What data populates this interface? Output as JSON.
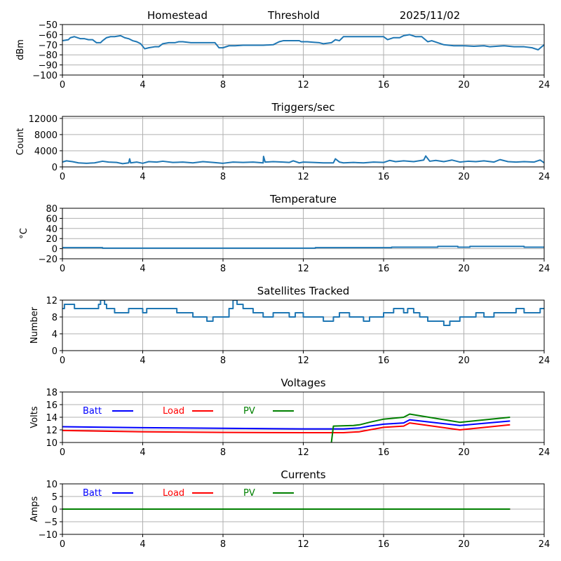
{
  "header": {
    "left": "Homestead",
    "center": "Threshold",
    "right": "2025/11/02"
  },
  "chart_data": [
    {
      "id": "signal",
      "type": "line",
      "title": "",
      "ylabel": "dBm",
      "xlim": [
        0,
        24
      ],
      "ylim": [
        -100,
        -50
      ],
      "xticks": [
        0,
        4,
        8,
        12,
        16,
        20,
        24
      ],
      "yticks": [
        -50,
        -60,
        -70,
        -80,
        -90,
        -100
      ],
      "ytick_labels": [
        "−50",
        "−60",
        "−70",
        "−80",
        "−90",
        "−100"
      ],
      "grid": true,
      "series": [
        {
          "name": "signal",
          "color": "#1f77b4",
          "x": [
            0,
            0.3,
            0.4,
            0.6,
            0.9,
            1.1,
            1.3,
            1.5,
            1.7,
            1.9,
            2.0,
            2.2,
            2.4,
            2.6,
            2.9,
            3.1,
            3.3,
            3.5,
            3.7,
            3.9,
            4.1,
            4.3,
            4.6,
            4.8,
            5.0,
            5.3,
            5.6,
            5.8,
            6.0,
            6.4,
            7.0,
            7.6,
            7.8,
            8.0,
            8.3,
            8.6,
            9.0,
            9.5,
            10.0,
            10.5,
            10.8,
            11.0,
            11.4,
            11.8,
            11.9,
            12.2,
            12.5,
            12.8,
            13.0,
            13.4,
            13.6,
            13.8,
            14.0,
            14.4,
            15.0,
            15.5,
            16.0,
            16.2,
            16.5,
            16.8,
            17.0,
            17.3,
            17.6,
            17.9,
            18.2,
            18.4,
            18.7,
            19.0,
            19.5,
            20.0,
            20.5,
            21.0,
            21.3,
            21.6,
            22.0,
            22.5,
            23.0,
            23.4,
            23.7,
            24.0
          ],
          "y": [
            -66,
            -65,
            -63,
            -62,
            -64,
            -64,
            -65,
            -65,
            -68,
            -68,
            -66,
            -63,
            -62,
            -62,
            -61,
            -63,
            -64,
            -66,
            -67,
            -69,
            -74,
            -73,
            -72,
            -72,
            -69,
            -68,
            -68,
            -67,
            -67,
            -68,
            -68,
            -68,
            -73,
            -73,
            -71,
            -71,
            -70.5,
            -70.5,
            -70.5,
            -70,
            -67,
            -66,
            -66,
            -66,
            -67,
            -67,
            -67.5,
            -68,
            -69,
            -68,
            -65,
            -66,
            -62,
            -62,
            -62,
            -62,
            -62,
            -65,
            -63,
            -63,
            -61,
            -60,
            -62,
            -62,
            -67,
            -66,
            -68,
            -70,
            -71,
            -71,
            -71.5,
            -71,
            -72,
            -71.5,
            -71,
            -72,
            -72,
            -73,
            -75,
            -70
          ]
        }
      ]
    },
    {
      "id": "triggers",
      "type": "line",
      "title": "Triggers/sec",
      "ylabel": "Count",
      "xlim": [
        0,
        24
      ],
      "ylim": [
        0,
        12500
      ],
      "xticks": [
        0,
        4,
        8,
        12,
        16,
        20,
        24
      ],
      "yticks": [
        0,
        4000,
        8000,
        12000
      ],
      "ytick_labels": [
        "0",
        "4000",
        "8000",
        "12000"
      ],
      "grid": true,
      "series": [
        {
          "name": "triggers",
          "color": "#1f77b4",
          "x": [
            0,
            0.2,
            0.5,
            0.8,
            1.2,
            1.6,
            2.0,
            2.3,
            2.7,
            3.0,
            3.3,
            3.35,
            3.4,
            3.7,
            4.0,
            4.3,
            4.7,
            5.0,
            5.5,
            6.0,
            6.5,
            7.0,
            7.5,
            8.0,
            8.5,
            9.0,
            9.5,
            10.0,
            10.02,
            10.1,
            10.5,
            11.0,
            11.3,
            11.5,
            11.8,
            12.0,
            12.5,
            13.0,
            13.5,
            13.6,
            13.8,
            14.0,
            14.5,
            15.0,
            15.5,
            16.0,
            16.3,
            16.6,
            17.0,
            17.5,
            18.0,
            18.1,
            18.3,
            18.6,
            19.0,
            19.4,
            19.8,
            20.2,
            20.6,
            21.0,
            21.5,
            21.8,
            22.2,
            22.6,
            23.0,
            23.5,
            23.8,
            24.0
          ],
          "y": [
            1200,
            1500,
            1300,
            1000,
            900,
            1000,
            1400,
            1200,
            1100,
            800,
            1000,
            2000,
            1000,
            1200,
            900,
            1300,
            1200,
            1400,
            1100,
            1200,
            1000,
            1300,
            1100,
            900,
            1200,
            1100,
            1200,
            1000,
            2600,
            1200,
            1300,
            1200,
            1100,
            1500,
            1000,
            1200,
            1100,
            1000,
            1000,
            2000,
            1200,
            1000,
            1100,
            1000,
            1200,
            1100,
            1600,
            1300,
            1500,
            1300,
            1700,
            2700,
            1400,
            1600,
            1300,
            1700,
            1200,
            1400,
            1300,
            1500,
            1200,
            1800,
            1300,
            1200,
            1300,
            1200,
            1700,
            1000
          ]
        }
      ]
    },
    {
      "id": "temperature",
      "type": "line",
      "title": "Temperature",
      "ylabel": "°C",
      "xlim": [
        0,
        24
      ],
      "ylim": [
        -20,
        80
      ],
      "xticks": [
        0,
        4,
        8,
        12,
        16,
        20,
        24
      ],
      "yticks": [
        -20,
        0,
        20,
        40,
        60,
        80
      ],
      "ytick_labels": [
        "−20",
        "0",
        "20",
        "40",
        "60",
        "80"
      ],
      "grid": true,
      "series": [
        {
          "name": "temperature",
          "color": "#1f77b4",
          "step": true,
          "x": [
            0,
            2.0,
            12.6,
            16.4,
            18.7,
            19.7,
            20.3,
            23.0,
            24.0
          ],
          "y": [
            2,
            1,
            2,
            3,
            4.5,
            3,
            4.5,
            3,
            3
          ]
        }
      ]
    },
    {
      "id": "satellites",
      "type": "line",
      "title": "Satellites Tracked",
      "ylabel": "Number",
      "xlim": [
        0,
        24
      ],
      "ylim": [
        0,
        12
      ],
      "xticks": [
        0,
        4,
        8,
        12,
        16,
        20,
        24
      ],
      "yticks": [
        0,
        4,
        8,
        12
      ],
      "ytick_labels": [
        "0",
        "4",
        "8",
        "12"
      ],
      "grid": true,
      "series": [
        {
          "name": "satellites",
          "color": "#1f77b4",
          "step": true,
          "x": [
            0,
            0.1,
            0.6,
            1.5,
            1.8,
            1.9,
            2.1,
            2.2,
            2.6,
            3.2,
            3.3,
            4.0,
            4.2,
            4.6,
            5.0,
            5.7,
            6.5,
            7.2,
            7.5,
            7.8,
            8.3,
            8.5,
            8.7,
            9.0,
            9.3,
            9.5,
            9.7,
            10.0,
            10.5,
            11.0,
            11.3,
            11.6,
            12.0,
            12.5,
            13.0,
            13.5,
            13.8,
            14.0,
            14.3,
            14.5,
            15.0,
            15.3,
            16.0,
            16.5,
            16.8,
            17.0,
            17.2,
            17.5,
            17.8,
            18.2,
            18.5,
            19.0,
            19.3,
            19.8,
            20.3,
            20.6,
            21.0,
            21.5,
            22.0,
            22.6,
            23.0,
            23.5,
            23.8,
            24.0
          ],
          "y": [
            10,
            11,
            10,
            10,
            11,
            12,
            11,
            10,
            9,
            9,
            10,
            9,
            10,
            10,
            10,
            9,
            8,
            7,
            8,
            8,
            10,
            12,
            11,
            10,
            10,
            9,
            9,
            8,
            9,
            9,
            8,
            9,
            8,
            8,
            7,
            8,
            9,
            9,
            8,
            8,
            7,
            8,
            9,
            10,
            10,
            9,
            10,
            9,
            8,
            7,
            7,
            6,
            7,
            8,
            8,
            9,
            8,
            9,
            9,
            10,
            9,
            9,
            10,
            10
          ]
        }
      ]
    },
    {
      "id": "voltages",
      "type": "line",
      "title": "Voltages",
      "ylabel": "Volts",
      "xlim": [
        0,
        24
      ],
      "ylim": [
        10,
        18
      ],
      "xticks": [
        0,
        4,
        8,
        12,
        16,
        20,
        24
      ],
      "yticks": [
        10,
        12,
        14,
        16,
        18
      ],
      "ytick_labels": [
        "10",
        "12",
        "14",
        "16",
        "18"
      ],
      "grid": true,
      "legend": "inline-top",
      "series": [
        {
          "name": "Batt",
          "color": "#0000ff",
          "x": [
            0,
            4,
            8,
            12,
            14,
            14.8,
            15.3,
            16,
            17,
            17.3,
            19.8,
            22.3
          ],
          "y": [
            12.5,
            12.35,
            12.25,
            12.15,
            12.15,
            12.3,
            12.6,
            12.9,
            13.1,
            13.6,
            12.7,
            13.4
          ]
        },
        {
          "name": "Load",
          "color": "#ff0000",
          "x": [
            0,
            4,
            8,
            12,
            14,
            14.8,
            15.3,
            16,
            17,
            17.3,
            19.8,
            22.3
          ],
          "y": [
            11.9,
            11.7,
            11.6,
            11.55,
            11.55,
            11.7,
            12.0,
            12.4,
            12.6,
            13.1,
            12.0,
            12.8
          ]
        },
        {
          "name": "PV",
          "color": "#008000",
          "x": [
            13.4,
            13.5,
            14.5,
            14.8,
            15.3,
            16,
            17,
            17.3,
            19.8,
            22.3
          ],
          "y": [
            10,
            12.6,
            12.7,
            12.8,
            13.2,
            13.7,
            14.0,
            14.5,
            13.2,
            14.0
          ]
        }
      ]
    },
    {
      "id": "currents",
      "type": "line",
      "title": "Currents",
      "ylabel": "Amps",
      "xlim": [
        0,
        24
      ],
      "ylim": [
        -10,
        10
      ],
      "xticks": [
        0,
        4,
        8,
        12,
        16,
        20,
        24
      ],
      "yticks": [
        -10,
        -5,
        0,
        5,
        10
      ],
      "ytick_labels": [
        "−10",
        "−5",
        "0",
        "5",
        "10"
      ],
      "grid": true,
      "legend": "inline-top",
      "series": [
        {
          "name": "Batt",
          "color": "#0000ff",
          "x": [
            0,
            22.3
          ],
          "y": [
            0,
            0
          ]
        },
        {
          "name": "Load",
          "color": "#ff0000",
          "x": [
            0,
            22.3
          ],
          "y": [
            0,
            0
          ]
        },
        {
          "name": "PV",
          "color": "#008000",
          "x": [
            0,
            22.3
          ],
          "y": [
            0,
            0
          ]
        }
      ]
    }
  ]
}
